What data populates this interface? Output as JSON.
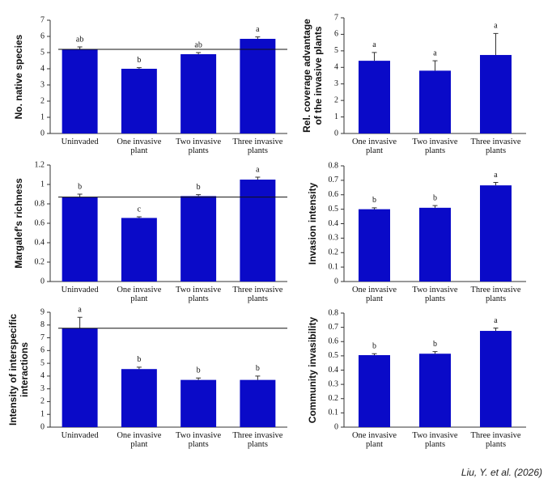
{
  "chart_data": [
    {
      "type": "bar",
      "ylabel": "No. native species",
      "categories": [
        "Uninvaded",
        "One invasive plant",
        "Two invasive plants",
        "Three invasive plants"
      ],
      "values": [
        5.2,
        4.0,
        4.9,
        5.85
      ],
      "errors": [
        0.15,
        0.07,
        0.1,
        0.12
      ],
      "letters": [
        "ab",
        "b",
        "ab",
        "a"
      ],
      "reference_line": 5.2,
      "ylim": [
        0,
        7
      ],
      "yticks": [
        0,
        1,
        2,
        3,
        4,
        5,
        6,
        7
      ],
      "color": "#0a0ac8"
    },
    {
      "type": "bar",
      "ylabel": "Rel. coverage advantage of the invasive plants",
      "categories": [
        "One invasive plant",
        "Two invasive plants",
        "Three invasive plants"
      ],
      "values": [
        4.4,
        3.8,
        4.75
      ],
      "errors": [
        0.5,
        0.6,
        1.3
      ],
      "letters": [
        "a",
        "a",
        "a"
      ],
      "ylim": [
        0,
        7
      ],
      "yticks": [
        0,
        1,
        2,
        3,
        4,
        5,
        6,
        7
      ],
      "color": "#0a0ac8"
    },
    {
      "type": "bar",
      "ylabel": "Margalef's richness",
      "categories": [
        "Uninvaded",
        "One invasive plant",
        "Two invasive plants",
        "Three invasive plants"
      ],
      "values": [
        0.87,
        0.655,
        0.88,
        1.05
      ],
      "errors": [
        0.03,
        0.012,
        0.015,
        0.025
      ],
      "letters": [
        "b",
        "c",
        "b",
        "a"
      ],
      "reference_line": 0.87,
      "ylim": [
        0,
        1.2
      ],
      "yticks": [
        0,
        0.2,
        0.4,
        0.6,
        0.8,
        1,
        1.2
      ],
      "color": "#0a0ac8"
    },
    {
      "type": "bar",
      "ylabel": "Invasion intensity",
      "categories": [
        "One invasive plant",
        "Two invasive plants",
        "Three invasive plants"
      ],
      "values": [
        0.5,
        0.51,
        0.665
      ],
      "errors": [
        0.01,
        0.015,
        0.02
      ],
      "letters": [
        "b",
        "b",
        "a"
      ],
      "ylim": [
        0,
        0.8
      ],
      "yticks": [
        0,
        0.1,
        0.2,
        0.3,
        0.4,
        0.5,
        0.6,
        0.7,
        0.8
      ],
      "color": "#0a0ac8"
    },
    {
      "type": "bar",
      "ylabel": "Intensity of interspecific interactions",
      "categories": [
        "Uninvaded",
        "One invasive plant",
        "Two invasive plants",
        "Three invasive plants"
      ],
      "values": [
        7.75,
        4.55,
        3.7,
        3.7
      ],
      "errors": [
        0.85,
        0.15,
        0.15,
        0.3
      ],
      "letters": [
        "a",
        "b",
        "b",
        "b"
      ],
      "reference_line": 7.75,
      "ylim": [
        0,
        9
      ],
      "yticks": [
        0,
        1,
        2,
        3,
        4,
        5,
        6,
        7,
        8,
        9
      ],
      "color": "#0a0ac8"
    },
    {
      "type": "bar",
      "ylabel": "Community invasibility",
      "categories": [
        "One invasive plant",
        "Two invasive plants",
        "Three invasive plants"
      ],
      "values": [
        0.505,
        0.515,
        0.675
      ],
      "errors": [
        0.01,
        0.015,
        0.02
      ],
      "letters": [
        "b",
        "b",
        "a"
      ],
      "ylim": [
        0,
        0.8
      ],
      "yticks": [
        0,
        0.1,
        0.2,
        0.3,
        0.4,
        0.5,
        0.6,
        0.7,
        0.8
      ],
      "color": "#0a0ac8"
    }
  ],
  "credit": "Liu, Y. et al. (2026)"
}
